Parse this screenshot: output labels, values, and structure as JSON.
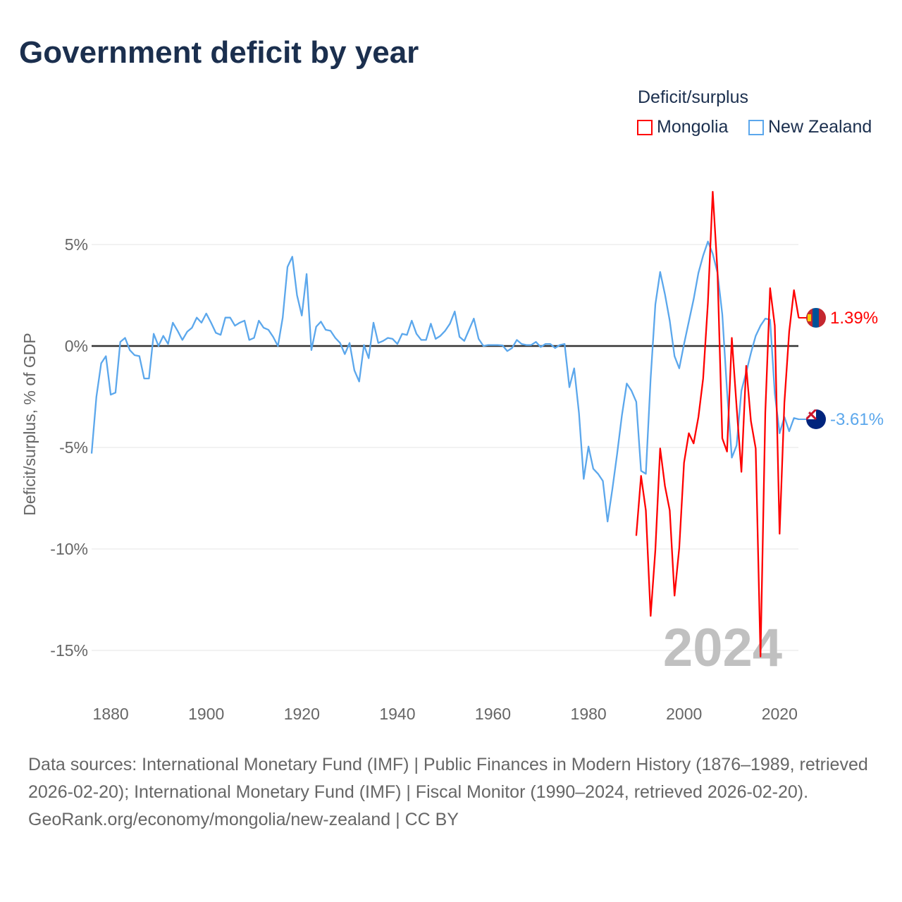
{
  "title": "Government deficit by year",
  "legend_title": "Deficit/surplus",
  "footer": {
    "sources": "Data sources: International Monetary Fund (IMF) | Public Finances in Modern History (1876–1989, retrieved 2026-02-20); International Monetary Fund (IMF) | Fiscal Monitor (1990–2024, retrieved 2026-02-20).",
    "credit": "GeoRank.org/economy/mongolia/new-zealand | CC BY"
  },
  "chart_data": {
    "type": "line",
    "title": "Government deficit by year",
    "ylabel": "Deficit/surplus, % of GDP",
    "xlabel": "",
    "xlim": [
      1876,
      2024
    ],
    "ylim": [
      -17,
      8
    ],
    "yticks": [
      5,
      0,
      -5,
      -10,
      -15
    ],
    "ytick_labels": [
      "5%",
      "0%",
      "-5%",
      "-10%",
      "-15%"
    ],
    "xticks": [
      1880,
      1900,
      1920,
      1940,
      1960,
      1980,
      2000,
      2020
    ],
    "xtick_labels": [
      "1880",
      "1900",
      "1920",
      "1940",
      "1960",
      "1980",
      "2000",
      "2020"
    ],
    "year_watermark": "2024",
    "legend_placement": "top-right",
    "series": [
      {
        "name": "Mongolia",
        "color": "#ff0000",
        "start_year": 1990,
        "end_label": "1.39%",
        "flag": "mongolia-flag",
        "values": [
          -9.35,
          -6.4,
          -8.1,
          -13.3,
          -10.05,
          -5.05,
          -6.9,
          -8.1,
          -12.3,
          -9.95,
          -5.75,
          -4.3,
          -4.8,
          -3.5,
          -1.6,
          2.15,
          7.6,
          3.65,
          -4.55,
          -5.2,
          0.4,
          -3.0,
          -6.2,
          -0.98,
          -3.7,
          -5.05,
          -15.3,
          -3.3,
          2.85,
          1.0,
          -9.25,
          -2.8,
          0.7,
          2.75,
          1.39
        ]
      },
      {
        "name": "New Zealand",
        "color": "#5ba7ec",
        "start_year": 1876,
        "end_label": "-3.61%",
        "flag": "new-zealand-flag",
        "values": [
          -5.3,
          -2.5,
          -0.85,
          -0.5,
          -2.4,
          -2.3,
          0.2,
          0.4,
          -0.2,
          -0.45,
          -0.5,
          -1.6,
          -1.6,
          0.6,
          0.0,
          0.5,
          0.1,
          1.15,
          0.75,
          0.3,
          0.7,
          0.9,
          1.4,
          1.15,
          1.6,
          1.15,
          0.65,
          0.55,
          1.4,
          1.4,
          1.0,
          1.15,
          1.25,
          0.3,
          0.4,
          1.25,
          0.9,
          0.8,
          0.45,
          0.0,
          1.4,
          3.9,
          4.4,
          2.5,
          1.5,
          3.55,
          -0.2,
          0.95,
          1.2,
          0.8,
          0.75,
          0.4,
          0.15,
          -0.4,
          0.15,
          -1.2,
          -1.75,
          0.05,
          -0.6,
          1.15,
          0.15,
          0.25,
          0.4,
          0.35,
          0.1,
          0.6,
          0.55,
          1.25,
          0.6,
          0.3,
          0.3,
          1.1,
          0.35,
          0.5,
          0.75,
          1.1,
          1.7,
          0.45,
          0.25,
          0.8,
          1.35,
          0.35,
          0.0,
          0.05,
          0.05,
          0.05,
          0.03,
          -0.25,
          -0.1,
          0.3,
          0.1,
          0.05,
          0.05,
          0.2,
          -0.05,
          0.1,
          0.1,
          -0.1,
          0.05,
          0.1,
          -2.03,
          -1.1,
          -3.3,
          -6.55,
          -4.95,
          -6.05,
          -6.3,
          -6.65,
          -8.65,
          -7.05,
          -5.3,
          -3.4,
          -1.85,
          -2.2,
          -2.75,
          -6.15,
          -6.3,
          -1.6,
          2.05,
          3.65,
          2.55,
          1.25,
          -0.5,
          -1.1,
          0.1,
          1.2,
          2.3,
          3.6,
          4.45,
          5.15,
          4.55,
          3.6,
          1.55,
          -2.2,
          -5.5,
          -4.9,
          -2.2,
          -1.3,
          -0.35,
          0.5,
          1.0,
          1.35,
          1.3,
          -2.35,
          -4.3,
          -3.5,
          -4.2,
          -3.55,
          -3.61
        ]
      }
    ]
  }
}
